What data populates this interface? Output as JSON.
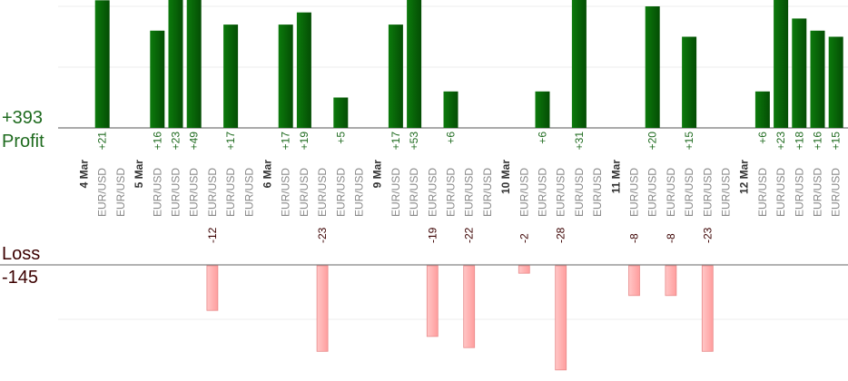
{
  "summary": {
    "profit_total": "+393",
    "profit_label": "Profit",
    "loss_label": "Loss",
    "loss_total": "-145"
  },
  "colors": {
    "profit_bar": "#0a6e0a",
    "profit_text": "#1f6b1f",
    "loss_bar": "#ffb3b3",
    "loss_text": "#3b0000",
    "pair_text": "#888888",
    "date_text": "#333333"
  },
  "chart_data": {
    "type": "bar",
    "title": "",
    "xlabel": "",
    "ylabel": "",
    "profit_ylim": [
      0,
      20
    ],
    "loss_ylim": [
      -28,
      0
    ],
    "slots": [
      {
        "kind": "date",
        "label": "4 Mar"
      },
      {
        "kind": "trade",
        "pair": "EUR/USD",
        "value": 21,
        "label": "+21"
      },
      {
        "kind": "trade",
        "pair": "EUR/USD",
        "value": null,
        "label": ""
      },
      {
        "kind": "date",
        "label": "5 Mar"
      },
      {
        "kind": "trade",
        "pair": "EUR/USD",
        "value": 16,
        "label": "+16"
      },
      {
        "kind": "trade",
        "pair": "EUR/USD",
        "value": 23,
        "label": "+23"
      },
      {
        "kind": "trade",
        "pair": "EUR/USD",
        "value": 49,
        "label": "+49"
      },
      {
        "kind": "trade",
        "pair": "EUR/USD",
        "value": -12,
        "label": "-12"
      },
      {
        "kind": "trade",
        "pair": "EUR/USD",
        "value": 17,
        "label": "+17"
      },
      {
        "kind": "trade",
        "pair": "EUR/USD",
        "value": null,
        "label": ""
      },
      {
        "kind": "date",
        "label": "6 Mar"
      },
      {
        "kind": "trade",
        "pair": "EUR/USD",
        "value": 17,
        "label": "+17"
      },
      {
        "kind": "trade",
        "pair": "EUR/USD",
        "value": 19,
        "label": "+19"
      },
      {
        "kind": "trade",
        "pair": "EUR/USD",
        "value": -23,
        "label": "-23"
      },
      {
        "kind": "trade",
        "pair": "EUR/USD",
        "value": 5,
        "label": "+5"
      },
      {
        "kind": "trade",
        "pair": "EUR/USD",
        "value": null,
        "label": ""
      },
      {
        "kind": "date",
        "label": "9 Mar"
      },
      {
        "kind": "trade",
        "pair": "EUR/USD",
        "value": 17,
        "label": "+17"
      },
      {
        "kind": "trade",
        "pair": "EUR/USD",
        "value": 53,
        "label": "+53"
      },
      {
        "kind": "trade",
        "pair": "EUR/USD",
        "value": -19,
        "label": "-19"
      },
      {
        "kind": "trade",
        "pair": "EUR/USD",
        "value": 6,
        "label": "+6"
      },
      {
        "kind": "trade",
        "pair": "EUR/USD",
        "value": -22,
        "label": "-22"
      },
      {
        "kind": "trade",
        "pair": "EUR/USD",
        "value": null,
        "label": ""
      },
      {
        "kind": "date",
        "label": "10 Mar"
      },
      {
        "kind": "trade",
        "pair": "EUR/USD",
        "value": -2,
        "label": "-2"
      },
      {
        "kind": "trade",
        "pair": "EUR/USD",
        "value": 6,
        "label": "+6"
      },
      {
        "kind": "trade",
        "pair": "EUR/USD",
        "value": -28,
        "label": "-28"
      },
      {
        "kind": "trade",
        "pair": "EUR/USD",
        "value": 31,
        "label": "+31"
      },
      {
        "kind": "trade",
        "pair": "EUR/USD",
        "value": null,
        "label": ""
      },
      {
        "kind": "date",
        "label": "11 Mar"
      },
      {
        "kind": "trade",
        "pair": "EUR/USD",
        "value": -8,
        "label": "-8"
      },
      {
        "kind": "trade",
        "pair": "EUR/USD",
        "value": 20,
        "label": "+20"
      },
      {
        "kind": "trade",
        "pair": "EUR/USD",
        "value": -8,
        "label": "-8"
      },
      {
        "kind": "trade",
        "pair": "EUR/USD",
        "value": 15,
        "label": "+15"
      },
      {
        "kind": "trade",
        "pair": "EUR/USD",
        "value": -23,
        "label": "-23"
      },
      {
        "kind": "trade",
        "pair": "EUR/USD",
        "value": null,
        "label": ""
      },
      {
        "kind": "date",
        "label": "12 Mar"
      },
      {
        "kind": "trade",
        "pair": "EUR/USD",
        "value": 6,
        "label": "+6"
      },
      {
        "kind": "trade",
        "pair": "EUR/USD",
        "value": 23,
        "label": "+23"
      },
      {
        "kind": "trade",
        "pair": "EUR/USD",
        "value": 18,
        "label": "+18"
      },
      {
        "kind": "trade",
        "pair": "EUR/USD",
        "value": 16,
        "label": "+16"
      },
      {
        "kind": "trade",
        "pair": "EUR/USD",
        "value": 15,
        "label": "+15"
      }
    ]
  }
}
